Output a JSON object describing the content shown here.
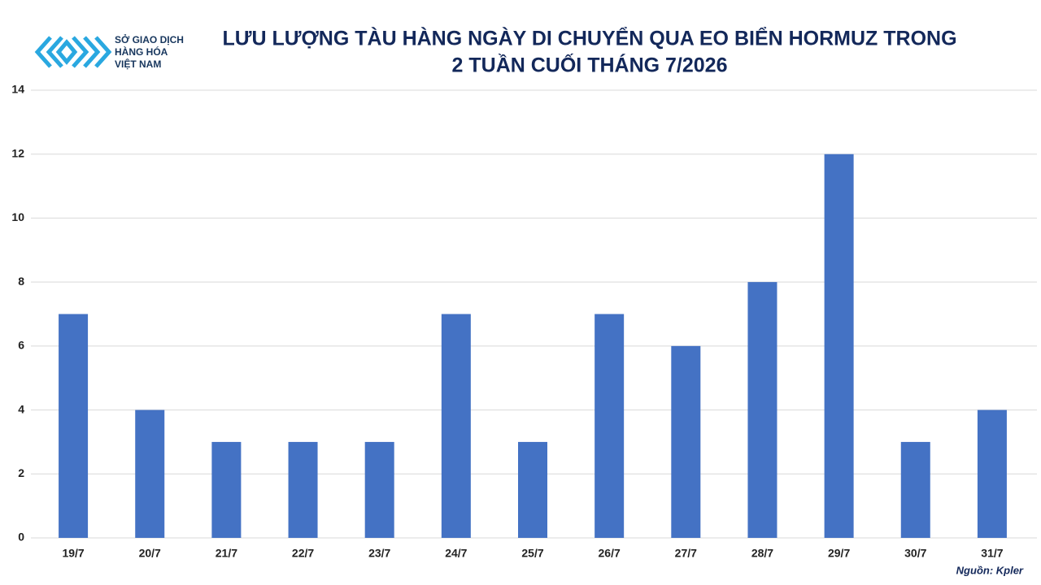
{
  "chart_data": {
    "type": "bar",
    "title": [
      "LƯU LƯỢNG TÀU HÀNG NGÀY DI CHUYỂN QUA EO BIỂN HORMUZ TRONG",
      "2 TUẦN CUỐI THÁNG 7/2026"
    ],
    "categories": [
      "19/7",
      "20/7",
      "21/7",
      "22/7",
      "23/7",
      "24/7",
      "25/7",
      "26/7",
      "27/7",
      "28/7",
      "29/7",
      "30/7",
      "31/7"
    ],
    "values": [
      7,
      4,
      3,
      3,
      3,
      7,
      3,
      7,
      6,
      8,
      12,
      3,
      4
    ],
    "color": "#4472c4",
    "ylim": [
      0,
      14
    ],
    "yticks": [
      0,
      2,
      4,
      6,
      8,
      10,
      12,
      14
    ],
    "grid": true,
    "source": "Nguồn: Kpler"
  },
  "logo": {
    "lines": [
      "SỞ GIAO DỊCH",
      "HÀNG HÓA",
      "VIỆT NAM"
    ]
  }
}
